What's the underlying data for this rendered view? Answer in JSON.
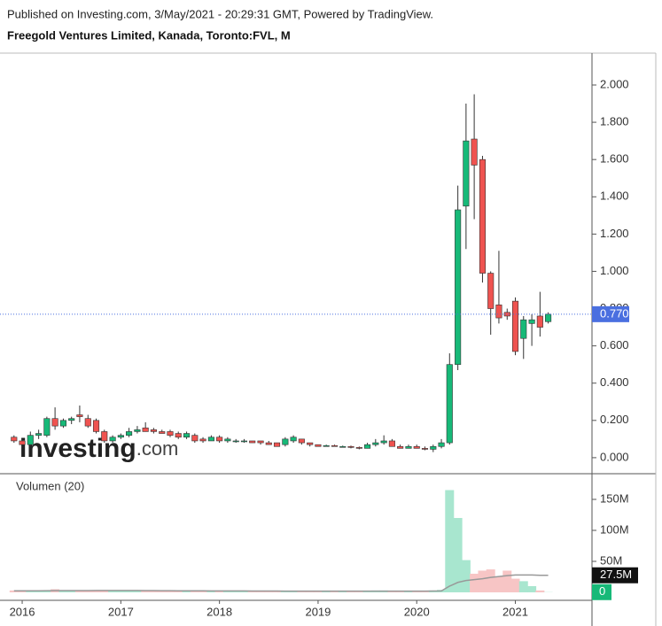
{
  "chart_data": {
    "type": "candlestick",
    "header": "Published on Investing.com, 3/May/2021 - 20:29:31 GMT, Powered by TradingView.",
    "title": "Freegold Ventures Limited, Kanada, Toronto:FVL, M",
    "watermark": [
      "investing",
      ".com"
    ],
    "up_color": "#17b978",
    "down_color": "#ef5350",
    "x": [
      2015.917,
      2016.0,
      2016.083,
      2016.167,
      2016.25,
      2016.333,
      2016.417,
      2016.5,
      2016.583,
      2016.667,
      2016.75,
      2016.833,
      2016.917,
      2017.0,
      2017.083,
      2017.167,
      2017.25,
      2017.333,
      2017.417,
      2017.5,
      2017.583,
      2017.667,
      2017.75,
      2017.833,
      2017.917,
      2018.0,
      2018.083,
      2018.167,
      2018.25,
      2018.333,
      2018.417,
      2018.5,
      2018.583,
      2018.667,
      2018.75,
      2018.833,
      2018.917,
      2019.0,
      2019.083,
      2019.167,
      2019.25,
      2019.333,
      2019.417,
      2019.5,
      2019.583,
      2019.667,
      2019.75,
      2019.833,
      2019.917,
      2020.0,
      2020.083,
      2020.167,
      2020.25,
      2020.333,
      2020.417,
      2020.5,
      2020.583,
      2020.667,
      2020.75,
      2020.833,
      2020.917,
      2021.0,
      2021.083,
      2021.167,
      2021.25,
      2021.333
    ],
    "open": [
      0.11,
      0.09,
      0.07,
      0.12,
      0.12,
      0.21,
      0.17,
      0.2,
      0.23,
      0.21,
      0.2,
      0.14,
      0.09,
      0.11,
      0.12,
      0.14,
      0.16,
      0.15,
      0.14,
      0.14,
      0.13,
      0.11,
      0.12,
      0.1,
      0.09,
      0.11,
      0.09,
      0.09,
      0.09,
      0.09,
      0.09,
      0.08,
      0.08,
      0.07,
      0.09,
      0.1,
      0.08,
      0.07,
      0.06,
      0.065,
      0.06,
      0.06,
      0.055,
      0.05,
      0.07,
      0.08,
      0.09,
      0.06,
      0.05,
      0.06,
      0.05,
      0.045,
      0.06,
      0.08,
      0.5,
      1.35,
      1.71,
      1.6,
      0.99,
      0.82,
      0.78,
      0.84,
      0.64,
      0.72,
      0.76,
      0.73
    ],
    "high": [
      0.12,
      0.1,
      0.14,
      0.15,
      0.22,
      0.27,
      0.21,
      0.22,
      0.28,
      0.23,
      0.21,
      0.15,
      0.12,
      0.13,
      0.16,
      0.17,
      0.19,
      0.16,
      0.15,
      0.15,
      0.14,
      0.14,
      0.13,
      0.11,
      0.12,
      0.12,
      0.11,
      0.1,
      0.1,
      0.09,
      0.09,
      0.09,
      0.08,
      0.11,
      0.12,
      0.1,
      0.08,
      0.07,
      0.07,
      0.07,
      0.065,
      0.065,
      0.06,
      0.08,
      0.1,
      0.12,
      0.1,
      0.07,
      0.07,
      0.07,
      0.06,
      0.07,
      0.1,
      0.56,
      1.46,
      1.9,
      1.95,
      1.62,
      1.0,
      1.11,
      0.8,
      0.86,
      0.76,
      0.77,
      0.89,
      0.78
    ],
    "low": [
      0.08,
      0.07,
      0.06,
      0.1,
      0.11,
      0.15,
      0.16,
      0.18,
      0.19,
      0.16,
      0.13,
      0.08,
      0.08,
      0.1,
      0.11,
      0.13,
      0.14,
      0.13,
      0.13,
      0.11,
      0.1,
      0.1,
      0.08,
      0.08,
      0.09,
      0.08,
      0.08,
      0.08,
      0.08,
      0.08,
      0.07,
      0.07,
      0.06,
      0.06,
      0.08,
      0.07,
      0.06,
      0.06,
      0.06,
      0.06,
      0.055,
      0.05,
      0.045,
      0.05,
      0.06,
      0.07,
      0.06,
      0.05,
      0.05,
      0.05,
      0.04,
      0.03,
      0.05,
      0.07,
      0.47,
      1.12,
      1.28,
      0.94,
      0.66,
      0.72,
      0.74,
      0.55,
      0.53,
      0.6,
      0.65,
      0.72
    ],
    "close": [
      0.09,
      0.07,
      0.12,
      0.13,
      0.21,
      0.17,
      0.2,
      0.21,
      0.22,
      0.17,
      0.14,
      0.09,
      0.11,
      0.12,
      0.14,
      0.15,
      0.14,
      0.14,
      0.13,
      0.12,
      0.11,
      0.13,
      0.09,
      0.09,
      0.11,
      0.09,
      0.1,
      0.09,
      0.09,
      0.08,
      0.08,
      0.07,
      0.06,
      0.1,
      0.11,
      0.08,
      0.07,
      0.06,
      0.065,
      0.06,
      0.06,
      0.055,
      0.05,
      0.07,
      0.08,
      0.09,
      0.06,
      0.05,
      0.06,
      0.05,
      0.045,
      0.06,
      0.08,
      0.5,
      1.33,
      1.7,
      1.57,
      0.99,
      0.8,
      0.75,
      0.76,
      0.57,
      0.74,
      0.74,
      0.7,
      0.77
    ],
    "xlim": [
      2015.775,
      2021.777
    ],
    "xticks": [
      2016,
      2017,
      2018,
      2019,
      2020,
      2021
    ],
    "ylim": [
      -0.086,
      2.171
    ],
    "yticks": [
      {
        "value": 0,
        "label": "0.000"
      },
      {
        "value": 0.2,
        "label": "0.200"
      },
      {
        "value": 0.4,
        "label": "0.400"
      },
      {
        "value": 0.6,
        "label": "0.600"
      },
      {
        "value": 0.8,
        "label": "0.800"
      },
      {
        "value": 1.0,
        "label": "1.000"
      },
      {
        "value": 1.2,
        "label": "1.200"
      },
      {
        "value": 1.4,
        "label": "1.400"
      },
      {
        "value": 1.6,
        "label": "1.600"
      },
      {
        "value": 1.8,
        "label": "1.800"
      },
      {
        "value": 2.0,
        "label": "2.000"
      }
    ],
    "last_price": {
      "value": 0.77,
      "label": "0.770"
    },
    "last_price_color": "#4a6fe0",
    "volume": {
      "title": "Volumen (20)",
      "values": [
        3,
        2,
        2,
        3,
        3,
        5,
        3,
        3,
        3,
        3,
        3,
        3,
        3,
        3,
        3,
        3,
        2,
        2,
        2,
        2,
        2,
        2,
        2,
        2,
        2,
        2,
        2,
        2,
        2,
        2,
        2,
        2,
        2,
        2,
        2,
        2,
        2,
        1.5,
        1.5,
        1.5,
        1.5,
        1.5,
        1.5,
        2,
        3,
        3,
        2,
        1.5,
        1.5,
        2,
        2,
        3,
        4,
        165,
        120,
        52,
        30,
        35,
        37,
        25,
        35,
        22,
        18,
        10,
        3,
        0.3
      ],
      "ma_values": [
        2.5,
        2.5,
        2.5,
        2.5,
        2.6,
        2.8,
        2.8,
        2.9,
        2.9,
        2.9,
        3,
        3,
        3,
        3,
        3,
        3,
        2.9,
        2.8,
        2.7,
        2.6,
        2.5,
        2.5,
        2.4,
        2.4,
        2.3,
        2.3,
        2.2,
        2.2,
        2.2,
        2.1,
        2.1,
        2.1,
        2.1,
        2,
        2,
        2,
        2,
        2,
        1.9,
        1.9,
        1.9,
        1.9,
        1.9,
        1.9,
        2,
        2,
        2,
        2,
        2,
        2,
        2,
        2.1,
        2.3,
        10,
        16,
        19,
        20.5,
        22,
        24,
        25.5,
        27,
        28,
        28,
        28,
        27.5,
        27.5
      ],
      "ylim": [
        -12.9,
        188.6
      ],
      "yticks": [
        {
          "value": 50,
          "label": "50M"
        },
        {
          "value": 100,
          "label": "100M"
        },
        {
          "value": 150,
          "label": "150M"
        }
      ],
      "ma_label": {
        "value": 27.5,
        "label": "27.5M"
      },
      "last_label": {
        "value": 0.3,
        "label": "0"
      },
      "up_color": "#a8e6cf",
      "down_color": "#f7c5c5",
      "ma_color": "#999999"
    }
  }
}
